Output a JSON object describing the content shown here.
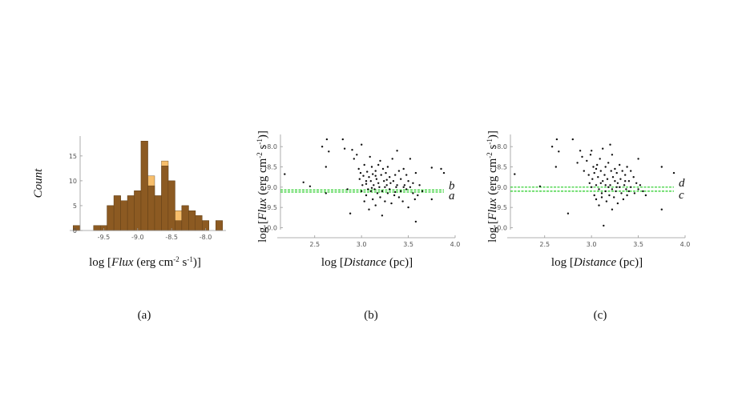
{
  "chart_data": [
    {
      "type": "bar",
      "panel_label": "(a)",
      "xlabel": {
        "pre": "log [",
        "italic": "Flux",
        "post": " (erg cm",
        "sup1": "-2",
        "mid": " s",
        "sup2": "-1",
        "end": ")]"
      },
      "ylabel": "Count",
      "xlim": [
        -10.0,
        -7.7
      ],
      "ylim": [
        0,
        19
      ],
      "x_ticks": [
        -9.5,
        -9.0,
        -8.5,
        -8.0
      ],
      "x_tick_labels": [
        "-9.5",
        "-9.0",
        "-8.5",
        "-8.0"
      ],
      "y_ticks": [
        0,
        5,
        10,
        15
      ],
      "y_tick_labels": [
        "0",
        "5",
        "10",
        "15"
      ],
      "bin_width": 0.1,
      "bin_starts": [
        -9.95,
        -9.75,
        -9.65,
        -9.55,
        -9.45,
        -9.35,
        -9.25,
        -9.15,
        -9.05,
        -8.95,
        -8.85,
        -8.75,
        -8.65,
        -8.55,
        -8.45,
        -8.35,
        -8.25,
        -8.15,
        -8.05,
        -7.85
      ],
      "series": [
        {
          "color": "#f7be6b",
          "values": [
            1,
            0,
            1,
            1,
            5,
            7,
            6,
            7,
            8,
            18,
            11,
            7,
            14,
            10,
            4,
            5,
            4,
            3,
            2,
            2
          ]
        },
        {
          "color": "#8c5a22",
          "values": [
            1,
            0,
            1,
            1,
            5,
            7,
            6,
            7,
            8,
            18,
            9,
            7,
            13,
            10,
            2,
            5,
            4,
            3,
            2,
            2
          ]
        }
      ]
    },
    {
      "type": "scatter",
      "panel_label": "(b)",
      "xlabel": {
        "pre": "log [",
        "italic": "Distance",
        "post": " (pc)]"
      },
      "ylabel": {
        "pre": "log [",
        "italic": "Flux",
        "post": " (erg cm",
        "sup1": "-2",
        "mid": " s",
        "sup2": "-1",
        "end": ")]"
      },
      "xlim": [
        2.1,
        4.0
      ],
      "ylim": [
        -10.05,
        -7.7
      ],
      "x_ticks": [
        2.5,
        3.0,
        3.5,
        4.0
      ],
      "x_tick_labels": [
        "2.5",
        "3.0",
        "3.5",
        "4.0"
      ],
      "y_ticks": [
        -8.0,
        -8.5,
        -9.0,
        -9.5,
        -10.0
      ],
      "y_tick_labels": [
        "-8.0",
        "-8.5",
        "-9.0",
        "-9.5",
        "-10.0"
      ],
      "line_color": "#22cc22",
      "lines": [
        {
          "label": "b",
          "y": -9.07
        },
        {
          "label": "a",
          "y": -9.12
        }
      ],
      "points": [
        [
          2.18,
          -8.68
        ],
        [
          2.38,
          -8.88
        ],
        [
          2.58,
          -8.0
        ],
        [
          2.63,
          -7.82
        ],
        [
          2.65,
          -8.12
        ],
        [
          2.62,
          -8.5
        ],
        [
          2.62,
          -9.15
        ],
        [
          2.45,
          -8.98
        ],
        [
          2.8,
          -7.82
        ],
        [
          2.82,
          -8.05
        ],
        [
          2.85,
          -9.05
        ],
        [
          2.88,
          -9.65
        ],
        [
          2.9,
          -8.08
        ],
        [
          2.92,
          -8.3
        ],
        [
          2.95,
          -8.2
        ],
        [
          2.97,
          -8.55
        ],
        [
          2.98,
          -8.8
        ],
        [
          2.99,
          -8.65
        ],
        [
          3.0,
          -9.1
        ],
        [
          3.0,
          -7.95
        ],
        [
          3.01,
          -8.95
        ],
        [
          3.02,
          -8.72
        ],
        [
          3.03,
          -9.35
        ],
        [
          3.03,
          -8.45
        ],
        [
          3.05,
          -8.92
        ],
        [
          3.05,
          -9.2
        ],
        [
          3.06,
          -8.62
        ],
        [
          3.07,
          -9.05
        ],
        [
          3.08,
          -8.75
        ],
        [
          3.08,
          -9.55
        ],
        [
          3.09,
          -8.25
        ],
        [
          3.1,
          -8.85
        ],
        [
          3.1,
          -9.1
        ],
        [
          3.11,
          -8.5
        ],
        [
          3.12,
          -9.3
        ],
        [
          3.12,
          -8.68
        ],
        [
          3.13,
          -8.95
        ],
        [
          3.14,
          -9.05
        ],
        [
          3.15,
          -8.6
        ],
        [
          3.15,
          -9.45
        ],
        [
          3.16,
          -8.8
        ],
        [
          3.17,
          -9.15
        ],
        [
          3.18,
          -8.45
        ],
        [
          3.18,
          -8.9
        ],
        [
          3.19,
          -9.0
        ],
        [
          3.2,
          -8.35
        ],
        [
          3.2,
          -9.25
        ],
        [
          3.21,
          -8.7
        ],
        [
          3.22,
          -9.1
        ],
        [
          3.22,
          -9.7
        ],
        [
          3.23,
          -8.55
        ],
        [
          3.24,
          -8.85
        ],
        [
          3.25,
          -9.0
        ],
        [
          3.25,
          -9.35
        ],
        [
          3.26,
          -8.65
        ],
        [
          3.27,
          -8.95
        ],
        [
          3.28,
          -9.15
        ],
        [
          3.28,
          -8.5
        ],
        [
          3.3,
          -8.75
        ],
        [
          3.3,
          -9.05
        ],
        [
          3.31,
          -8.9
        ],
        [
          3.32,
          -9.4
        ],
        [
          3.33,
          -8.3
        ],
        [
          3.34,
          -8.85
        ],
        [
          3.35,
          -9.2
        ],
        [
          3.36,
          -8.7
        ],
        [
          3.37,
          -9.0
        ],
        [
          3.38,
          -8.1
        ],
        [
          3.38,
          -8.95
        ],
        [
          3.4,
          -8.6
        ],
        [
          3.4,
          -9.25
        ],
        [
          3.42,
          -8.8
        ],
        [
          3.42,
          -9.1
        ],
        [
          3.44,
          -9.35
        ],
        [
          3.45,
          -8.55
        ],
        [
          3.46,
          -8.95
        ],
        [
          3.48,
          -9.05
        ],
        [
          3.48,
          -8.7
        ],
        [
          3.5,
          -9.5
        ],
        [
          3.5,
          -8.85
        ],
        [
          3.52,
          -9.0
        ],
        [
          3.52,
          -8.3
        ],
        [
          3.55,
          -9.15
        ],
        [
          3.55,
          -8.9
        ],
        [
          3.57,
          -9.3
        ],
        [
          3.58,
          -8.65
        ],
        [
          3.6,
          -9.2
        ],
        [
          3.62,
          -8.95
        ],
        [
          3.65,
          -9.1
        ],
        [
          3.58,
          -9.85
        ],
        [
          3.75,
          -9.3
        ],
        [
          3.75,
          -8.52
        ],
        [
          3.85,
          -8.55
        ],
        [
          3.88,
          -8.65
        ],
        [
          3.45,
          -9.0
        ],
        [
          3.05,
          -8.85
        ],
        [
          3.15,
          -8.72
        ],
        [
          3.27,
          -8.82
        ],
        [
          3.11,
          -9.02
        ],
        [
          3.36,
          -9.12
        ]
      ]
    },
    {
      "type": "scatter",
      "panel_label": "(c)",
      "xlabel": {
        "pre": "log [",
        "italic": "Distance",
        "post": " (pc)]"
      },
      "ylabel": {
        "pre": "log [",
        "italic": "Flux",
        "post": " (erg cm",
        "sup1": "-2",
        "mid": " s",
        "sup2": "-1",
        "end": ")]"
      },
      "xlim": [
        2.1,
        4.0
      ],
      "ylim": [
        -10.05,
        -7.7
      ],
      "x_ticks": [
        2.5,
        3.0,
        3.5,
        4.0
      ],
      "x_tick_labels": [
        "2.5",
        "3.0",
        "3.5",
        "4.0"
      ],
      "y_ticks": [
        -8.0,
        -8.5,
        -9.0,
        -9.5,
        -10.0
      ],
      "y_tick_labels": [
        "-8.0",
        "-8.5",
        "-9.0",
        "-9.5",
        "-10.0"
      ],
      "line_color": "#22cc22",
      "lines": [
        {
          "label": "d",
          "y": -9.0
        },
        {
          "label": "c",
          "y": -9.1
        }
      ],
      "points": [
        [
          2.18,
          -8.68
        ],
        [
          2.58,
          -8.0
        ],
        [
          2.63,
          -7.82
        ],
        [
          2.65,
          -8.12
        ],
        [
          2.62,
          -8.5
        ],
        [
          2.45,
          -8.98
        ],
        [
          2.8,
          -7.82
        ],
        [
          2.85,
          -8.4
        ],
        [
          2.75,
          -9.65
        ],
        [
          2.88,
          -8.1
        ],
        [
          2.9,
          -8.25
        ],
        [
          2.92,
          -8.6
        ],
        [
          2.95,
          -8.35
        ],
        [
          2.97,
          -8.7
        ],
        [
          2.98,
          -8.9
        ],
        [
          2.99,
          -8.2
        ],
        [
          3.0,
          -9.0
        ],
        [
          3.0,
          -8.1
        ],
        [
          3.01,
          -8.8
        ],
        [
          3.02,
          -8.5
        ],
        [
          3.03,
          -9.2
        ],
        [
          3.03,
          -8.65
        ],
        [
          3.05,
          -8.95
        ],
        [
          3.05,
          -9.3
        ],
        [
          3.06,
          -8.45
        ],
        [
          3.07,
          -8.75
        ],
        [
          3.08,
          -9.05
        ],
        [
          3.08,
          -9.45
        ],
        [
          3.09,
          -8.3
        ],
        [
          3.1,
          -8.9
        ],
        [
          3.1,
          -8.6
        ],
        [
          3.11,
          -9.15
        ],
        [
          3.12,
          -8.05
        ],
        [
          3.12,
          -8.85
        ],
        [
          3.13,
          -9.95
        ],
        [
          3.14,
          -8.7
        ],
        [
          3.15,
          -9.1
        ],
        [
          3.15,
          -8.5
        ],
        [
          3.16,
          -9.35
        ],
        [
          3.17,
          -8.8
        ],
        [
          3.18,
          -9.0
        ],
        [
          3.18,
          -8.4
        ],
        [
          3.19,
          -9.2
        ],
        [
          3.2,
          -7.95
        ],
        [
          3.2,
          -8.95
        ],
        [
          3.21,
          -8.6
        ],
        [
          3.22,
          -9.05
        ],
        [
          3.22,
          -9.55
        ],
        [
          3.23,
          -8.75
        ],
        [
          3.24,
          -9.25
        ],
        [
          3.25,
          -8.85
        ],
        [
          3.25,
          -8.55
        ],
        [
          3.26,
          -9.1
        ],
        [
          3.27,
          -8.65
        ],
        [
          3.28,
          -9.4
        ],
        [
          3.28,
          -8.9
        ],
        [
          3.3,
          -9.0
        ],
        [
          3.3,
          -8.45
        ],
        [
          3.31,
          -8.8
        ],
        [
          3.32,
          -9.15
        ],
        [
          3.33,
          -8.6
        ],
        [
          3.34,
          -9.3
        ],
        [
          3.35,
          -8.95
        ],
        [
          3.36,
          -8.7
        ],
        [
          3.37,
          -9.05
        ],
        [
          3.38,
          -8.5
        ],
        [
          3.38,
          -9.2
        ],
        [
          3.4,
          -8.85
        ],
        [
          3.4,
          -9.1
        ],
        [
          3.42,
          -8.6
        ],
        [
          3.42,
          -9.0
        ],
        [
          3.45,
          -8.75
        ],
        [
          3.46,
          -9.15
        ],
        [
          3.48,
          -8.9
        ],
        [
          3.5,
          -8.3
        ],
        [
          3.5,
          -9.05
        ],
        [
          3.52,
          -8.95
        ],
        [
          3.55,
          -9.1
        ],
        [
          3.58,
          -9.2
        ],
        [
          3.75,
          -8.5
        ],
        [
          3.75,
          -9.55
        ],
        [
          3.88,
          -8.65
        ],
        [
          3.05,
          -8.55
        ],
        [
          3.15,
          -8.95
        ],
        [
          3.27,
          -9.0
        ],
        [
          3.36,
          -8.85
        ],
        [
          3.11,
          -9.25
        ],
        [
          3.22,
          -8.2
        ]
      ]
    }
  ]
}
